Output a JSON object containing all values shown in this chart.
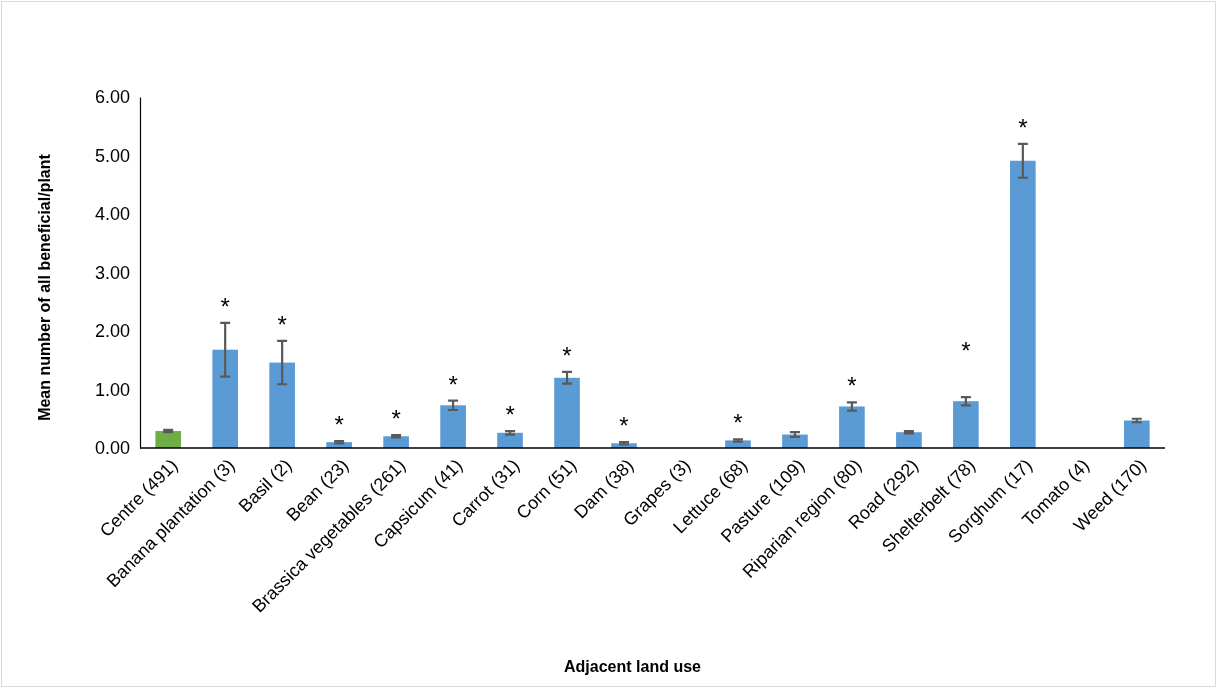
{
  "chart_data": {
    "type": "bar",
    "xlabel": "Adjacent land use",
    "ylabel": "Mean number of all beneficial/plant",
    "categories": [
      "Centre (491)",
      "Banana plantation (3)",
      "Basil (2)",
      "Bean (23)",
      "Brassica vegetables (261)",
      "Capsicum (41)",
      "Carrot (31)",
      "Corn (51)",
      "Dam (38)",
      "Grapes (3)",
      "Lettuce (68)",
      "Pasture (109)",
      "Riparian region (80)",
      "Road (292)",
      "Shelterbelt (78)",
      "Sorghum (17)",
      "Tomato (4)",
      "Weed (170)"
    ],
    "values": [
      0.29,
      1.68,
      1.46,
      0.1,
      0.2,
      0.73,
      0.26,
      1.2,
      0.08,
      0,
      0.13,
      0.23,
      0.71,
      0.27,
      0.8,
      4.91,
      0,
      0.47
    ],
    "errors": [
      0.02,
      0.46,
      0.37,
      0.02,
      0.02,
      0.08,
      0.03,
      0.1,
      0.02,
      null,
      0.02,
      0.04,
      0.07,
      0.02,
      0.07,
      0.29,
      null,
      0.03
    ],
    "colors": [
      "#70ad47",
      "#5b9bd5",
      "#5b9bd5",
      "#5b9bd5",
      "#5b9bd5",
      "#5b9bd5",
      "#5b9bd5",
      "#5b9bd5",
      "#5b9bd5",
      "#5b9bd5",
      "#5b9bd5",
      "#5b9bd5",
      "#5b9bd5",
      "#5b9bd5",
      "#5b9bd5",
      "#5b9bd5",
      "#5b9bd5",
      "#5b9bd5"
    ],
    "ylim": [
      0,
      6
    ],
    "yticks": [
      {
        "value": 0,
        "label": "0.00"
      },
      {
        "value": 1,
        "label": "1.00"
      },
      {
        "value": 2,
        "label": "2.00"
      },
      {
        "value": 3,
        "label": "3.00"
      },
      {
        "value": 4,
        "label": "4.00"
      },
      {
        "value": 5,
        "label": "5.00"
      },
      {
        "value": 6,
        "label": "6.00"
      }
    ],
    "grid": false,
    "annotations": [
      "*",
      "*",
      "*",
      "*",
      "*",
      "*",
      "*",
      "*",
      "*",
      "*",
      "*",
      "*"
    ]
  }
}
